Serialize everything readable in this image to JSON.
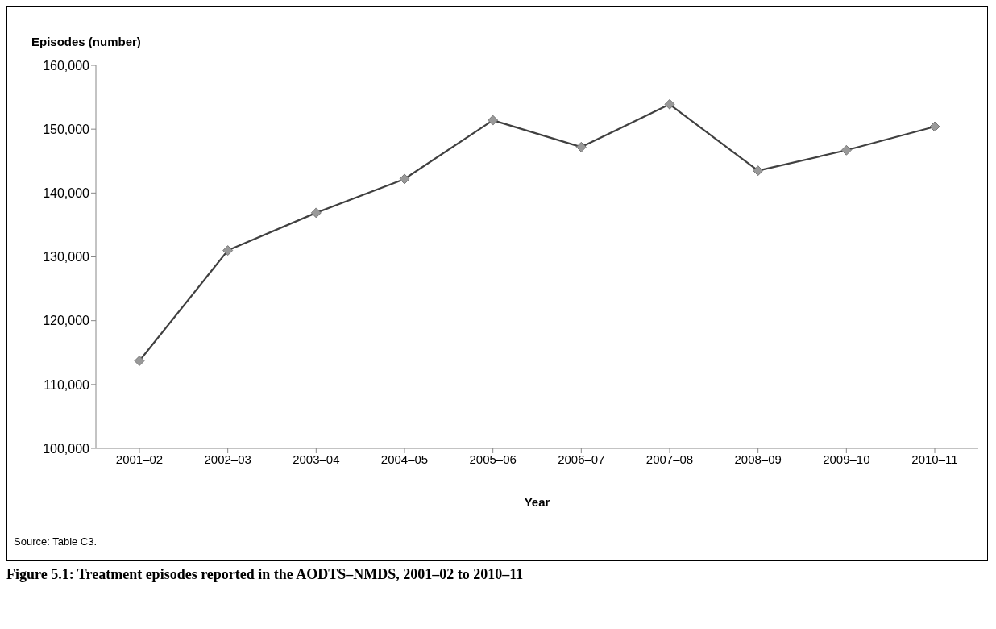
{
  "chart_data": {
    "type": "line",
    "title": "Figure 5.1: Treatment episodes reported in the AODTS–NMDS, 2001–02 to 2010–11",
    "xlabel": "Year",
    "ylabel": "Episodes (number)",
    "annotations": [
      "Source: Table C3."
    ],
    "categories": [
      "2001–02",
      "2002–03",
      "2003–04",
      "2004–05",
      "2005–06",
      "2006–07",
      "2007–08",
      "2008–09",
      "2009–10",
      "2010–11"
    ],
    "series": [
      {
        "color": "#404040",
        "values": [
          113700,
          131000,
          136900,
          142200,
          151400,
          147200,
          153900,
          143500,
          146700,
          150400
        ]
      }
    ],
    "ylim": [
      100000,
      160000
    ],
    "yticks": [
      {
        "value": 100000,
        "label": "100,000"
      },
      {
        "value": 110000,
        "label": "110,000"
      },
      {
        "value": 120000,
        "label": "120,000"
      },
      {
        "value": 130000,
        "label": "130,000"
      },
      {
        "value": 140000,
        "label": "140,000"
      },
      {
        "value": 150000,
        "label": "150,000"
      },
      {
        "value": 160000,
        "label": "160,000"
      }
    ],
    "grid": false,
    "legend": false,
    "marker": "diamond",
    "line_style": "solid"
  }
}
